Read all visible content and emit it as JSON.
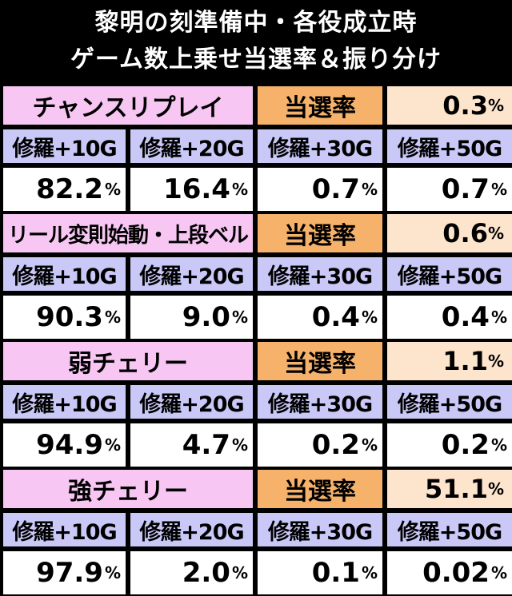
{
  "header": {
    "line1": "黎明の刻準備中・各役成立時",
    "line2": "ゲーム数上乗せ当選率＆振り分け"
  },
  "prob_label": "当選率",
  "columns": [
    "修羅+10G",
    "修羅+20G",
    "修羅+30G",
    "修羅+50G"
  ],
  "pct": "%",
  "sections": [
    {
      "role": "チャンスリプレイ",
      "prob": "0.3",
      "values": [
        "82.2",
        "16.4",
        "0.7",
        "0.7"
      ]
    },
    {
      "role": "リール変則始動・上段ベル",
      "prob": "0.6",
      "values": [
        "90.3",
        "9.0",
        "0.4",
        "0.4"
      ]
    },
    {
      "role": "弱チェリー",
      "prob": "1.1",
      "values": [
        "94.9",
        "4.7",
        "0.2",
        "0.2"
      ]
    },
    {
      "role": "強チェリー",
      "prob": "51.1",
      "values": [
        "97.9",
        "2.0",
        "0.1",
        "0.02"
      ]
    }
  ]
}
